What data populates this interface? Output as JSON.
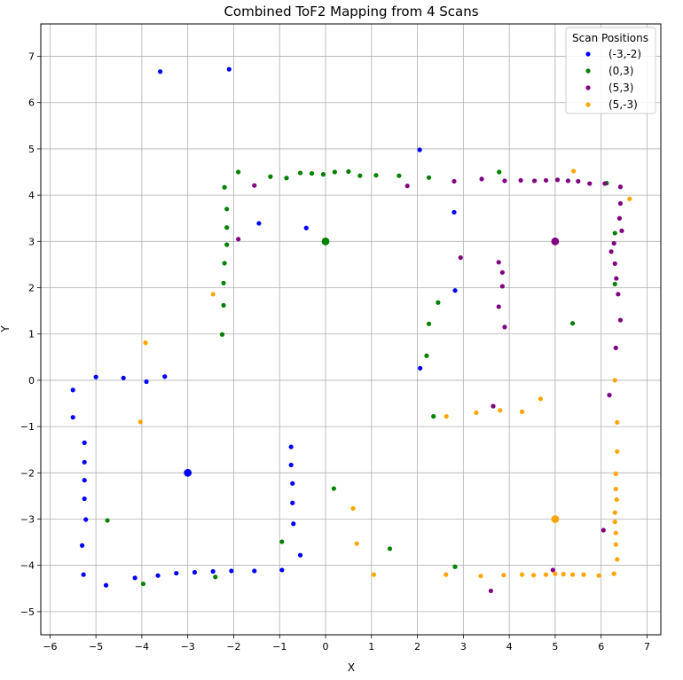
{
  "chart_data": {
    "type": "scatter",
    "title": "Combined ToF2 Mapping from 4 Scans",
    "xlabel": "X",
    "ylabel": "Y",
    "xlim": [
      -6.2,
      7.3
    ],
    "ylim": [
      -5.5,
      7.7
    ],
    "xticks": [
      -6,
      -5,
      -4,
      -3,
      -2,
      -1,
      0,
      1,
      2,
      3,
      4,
      5,
      6,
      7
    ],
    "yticks": [
      -5,
      -4,
      -3,
      -2,
      -1,
      0,
      1,
      2,
      3,
      4,
      5,
      6,
      7
    ],
    "grid": true,
    "legend": {
      "title": "Scan Positions",
      "placement": "top-right"
    },
    "series": [
      {
        "name": "(-3,-2)",
        "color": "#0000ff",
        "scan_position": [
          -3,
          -2
        ],
        "points": [
          [
            -3.6,
            6.67
          ],
          [
            -2.1,
            6.72
          ],
          [
            2.05,
            4.98
          ],
          [
            -1.45,
            3.39
          ],
          [
            -0.42,
            3.29
          ],
          [
            2.8,
            3.63
          ],
          [
            2.82,
            1.94
          ],
          [
            2.06,
            0.26
          ],
          [
            -5.0,
            0.07
          ],
          [
            -4.4,
            0.05
          ],
          [
            -3.9,
            -0.03
          ],
          [
            -3.5,
            0.08
          ],
          [
            -5.5,
            -0.21
          ],
          [
            -5.5,
            -0.8
          ],
          [
            -5.25,
            -1.35
          ],
          [
            -5.25,
            -1.77
          ],
          [
            -5.25,
            -2.16
          ],
          [
            -5.25,
            -2.56
          ],
          [
            -5.22,
            -3.01
          ],
          [
            -5.3,
            -3.57
          ],
          [
            -5.27,
            -4.2
          ],
          [
            -4.78,
            -4.43
          ],
          [
            -4.15,
            -4.27
          ],
          [
            -3.65,
            -4.22
          ],
          [
            -3.25,
            -4.17
          ],
          [
            -2.85,
            -4.15
          ],
          [
            -2.45,
            -4.13
          ],
          [
            -2.05,
            -4.12
          ],
          [
            -1.55,
            -4.12
          ],
          [
            -0.95,
            -4.1
          ],
          [
            -0.75,
            -1.44
          ],
          [
            -0.75,
            -1.83
          ],
          [
            -0.72,
            -2.23
          ],
          [
            -0.72,
            -2.65
          ],
          [
            -0.7,
            -3.1
          ],
          [
            -0.55,
            -3.78
          ]
        ]
      },
      {
        "name": "(0,3)",
        "color": "#008000",
        "scan_position": [
          0,
          3
        ],
        "points": [
          [
            -1.9,
            4.5
          ],
          [
            -1.2,
            4.4
          ],
          [
            -0.85,
            4.37
          ],
          [
            -0.55,
            4.48
          ],
          [
            -0.3,
            4.47
          ],
          [
            -0.05,
            4.45
          ],
          [
            0.2,
            4.5
          ],
          [
            0.5,
            4.51
          ],
          [
            0.75,
            4.42
          ],
          [
            1.1,
            4.43
          ],
          [
            1.6,
            4.42
          ],
          [
            2.25,
            4.38
          ],
          [
            3.78,
            4.5
          ],
          [
            6.12,
            4.26
          ],
          [
            -2.2,
            4.17
          ],
          [
            -2.15,
            3.7
          ],
          [
            -2.15,
            3.3
          ],
          [
            -2.15,
            2.93
          ],
          [
            -2.2,
            2.53
          ],
          [
            -2.22,
            2.1
          ],
          [
            -2.22,
            1.62
          ],
          [
            -2.25,
            0.99
          ],
          [
            2.45,
            1.68
          ],
          [
            2.25,
            1.22
          ],
          [
            2.2,
            0.53
          ],
          [
            2.35,
            -0.78
          ],
          [
            5.38,
            1.23
          ],
          [
            6.3,
            3.18
          ],
          [
            6.3,
            2.08
          ],
          [
            -4.75,
            -3.03
          ],
          [
            -3.97,
            -4.4
          ],
          [
            -2.4,
            -4.25
          ],
          [
            -0.95,
            -3.49
          ],
          [
            0.18,
            -2.34
          ],
          [
            1.4,
            -3.64
          ],
          [
            2.82,
            -4.03
          ]
        ]
      },
      {
        "name": "(5,3)",
        "color": "#800080",
        "scan_position": [
          5,
          3
        ],
        "points": [
          [
            -1.55,
            4.21
          ],
          [
            -1.9,
            3.05
          ],
          [
            1.78,
            4.2
          ],
          [
            2.8,
            4.3
          ],
          [
            3.4,
            4.35
          ],
          [
            3.9,
            4.31
          ],
          [
            4.25,
            4.32
          ],
          [
            4.55,
            4.31
          ],
          [
            4.8,
            4.32
          ],
          [
            5.05,
            4.33
          ],
          [
            5.28,
            4.31
          ],
          [
            5.5,
            4.3
          ],
          [
            5.75,
            4.25
          ],
          [
            6.08,
            4.25
          ],
          [
            6.42,
            4.18
          ],
          [
            6.42,
            3.82
          ],
          [
            6.4,
            3.5
          ],
          [
            6.45,
            3.23
          ],
          [
            6.28,
            2.96
          ],
          [
            6.22,
            2.78
          ],
          [
            6.3,
            2.52
          ],
          [
            6.33,
            2.2
          ],
          [
            6.37,
            1.86
          ],
          [
            6.42,
            1.3
          ],
          [
            6.32,
            0.7
          ],
          [
            6.18,
            -0.32
          ],
          [
            6.05,
            -3.24
          ],
          [
            2.94,
            2.65
          ],
          [
            3.77,
            2.55
          ],
          [
            3.85,
            2.33
          ],
          [
            3.85,
            2.03
          ],
          [
            3.77,
            1.59
          ],
          [
            3.9,
            1.15
          ],
          [
            3.65,
            -0.56
          ],
          [
            4.95,
            -4.1
          ],
          [
            3.6,
            -4.55
          ]
        ]
      },
      {
        "name": "(5,-3)",
        "color": "#ffa500",
        "scan_position": [
          5,
          -3
        ],
        "points": [
          [
            5.4,
            4.52
          ],
          [
            6.62,
            3.92
          ],
          [
            -2.45,
            1.86
          ],
          [
            -3.92,
            0.81
          ],
          [
            -4.03,
            -0.9
          ],
          [
            4.68,
            -0.4
          ],
          [
            4.28,
            -0.68
          ],
          [
            3.8,
            -0.65
          ],
          [
            3.28,
            -0.7
          ],
          [
            2.63,
            -0.78
          ],
          [
            6.3,
            0.0
          ],
          [
            6.35,
            -0.91
          ],
          [
            6.35,
            -1.54
          ],
          [
            6.32,
            -2.02
          ],
          [
            6.32,
            -2.35
          ],
          [
            6.34,
            -2.58
          ],
          [
            6.3,
            -2.86
          ],
          [
            6.3,
            -3.06
          ],
          [
            6.32,
            -3.3
          ],
          [
            6.32,
            -3.55
          ],
          [
            6.35,
            -3.87
          ],
          [
            6.28,
            -4.18
          ],
          [
            0.6,
            -2.77
          ],
          [
            0.68,
            -3.53
          ],
          [
            1.05,
            -4.2
          ],
          [
            2.62,
            -4.2
          ],
          [
            3.38,
            -4.23
          ],
          [
            3.88,
            -4.21
          ],
          [
            4.28,
            -4.2
          ],
          [
            4.53,
            -4.21
          ],
          [
            4.8,
            -4.2
          ],
          [
            5.0,
            -4.18
          ],
          [
            5.18,
            -4.19
          ],
          [
            5.38,
            -4.2
          ],
          [
            5.62,
            -4.2
          ],
          [
            5.95,
            -4.22
          ]
        ]
      }
    ]
  }
}
